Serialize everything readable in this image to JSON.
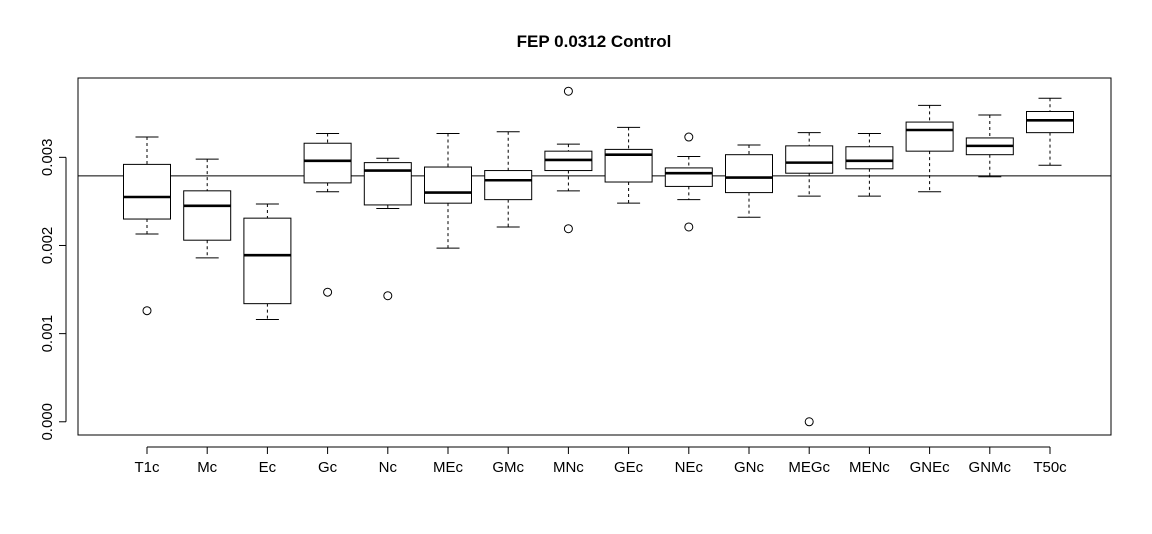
{
  "chart_data": {
    "type": "boxplot",
    "title": "FEP 0.0312 Control",
    "xlabel": "",
    "ylabel": "",
    "ylim": [
      -0.00015,
      0.0039
    ],
    "y_ticks": [
      0.0,
      0.001,
      0.002,
      0.003
    ],
    "y_tick_labels": [
      "0.000",
      "0.001",
      "0.002",
      "0.003"
    ],
    "reference_line_y": 0.00279,
    "categories": [
      "T1c",
      "Mc",
      "Ec",
      "Gc",
      "Nc",
      "MEc",
      "GMc",
      "MNc",
      "GEc",
      "NEc",
      "GNc",
      "MEGc",
      "MENc",
      "GNEc",
      "GNMc",
      "T50c"
    ],
    "boxes": [
      {
        "category": "T1c",
        "whisker_low": 0.00213,
        "q1": 0.0023,
        "median": 0.00255,
        "q3": 0.00292,
        "whisker_high": 0.00323,
        "outliers": [
          0.00126
        ]
      },
      {
        "category": "Mc",
        "whisker_low": 0.00186,
        "q1": 0.00206,
        "median": 0.00245,
        "q3": 0.00262,
        "whisker_high": 0.00298,
        "outliers": []
      },
      {
        "category": "Ec",
        "whisker_low": 0.00116,
        "q1": 0.00134,
        "median": 0.00189,
        "q3": 0.00231,
        "whisker_high": 0.00247,
        "outliers": []
      },
      {
        "category": "Gc",
        "whisker_low": 0.00261,
        "q1": 0.00271,
        "median": 0.00296,
        "q3": 0.00316,
        "whisker_high": 0.00327,
        "outliers": [
          0.00147
        ]
      },
      {
        "category": "Nc",
        "whisker_low": 0.00242,
        "q1": 0.00246,
        "median": 0.00285,
        "q3": 0.00294,
        "whisker_high": 0.00299,
        "outliers": [
          0.00143
        ]
      },
      {
        "category": "MEc",
        "whisker_low": 0.00197,
        "q1": 0.00248,
        "median": 0.0026,
        "q3": 0.00289,
        "whisker_high": 0.00327,
        "outliers": []
      },
      {
        "category": "GMc",
        "whisker_low": 0.00221,
        "q1": 0.00252,
        "median": 0.00274,
        "q3": 0.00285,
        "whisker_high": 0.00329,
        "outliers": []
      },
      {
        "category": "MNc",
        "whisker_low": 0.00262,
        "q1": 0.00285,
        "median": 0.00297,
        "q3": 0.00307,
        "whisker_high": 0.00315,
        "outliers": [
          0.00375,
          0.00219
        ]
      },
      {
        "category": "GEc",
        "whisker_low": 0.00248,
        "q1": 0.00272,
        "median": 0.00303,
        "q3": 0.00309,
        "whisker_high": 0.00334,
        "outliers": []
      },
      {
        "category": "NEc",
        "whisker_low": 0.00252,
        "q1": 0.00267,
        "median": 0.00282,
        "q3": 0.00288,
        "whisker_high": 0.00301,
        "outliers": [
          0.00323,
          0.00221
        ]
      },
      {
        "category": "GNc",
        "whisker_low": 0.00232,
        "q1": 0.0026,
        "median": 0.00277,
        "q3": 0.00303,
        "whisker_high": 0.00314,
        "outliers": []
      },
      {
        "category": "MEGc",
        "whisker_low": 0.00256,
        "q1": 0.00282,
        "median": 0.00294,
        "q3": 0.00313,
        "whisker_high": 0.00328,
        "outliers": [
          0.0
        ]
      },
      {
        "category": "MENc",
        "whisker_low": 0.00256,
        "q1": 0.00287,
        "median": 0.00296,
        "q3": 0.00312,
        "whisker_high": 0.00327,
        "outliers": []
      },
      {
        "category": "GNEc",
        "whisker_low": 0.00261,
        "q1": 0.00307,
        "median": 0.00331,
        "q3": 0.0034,
        "whisker_high": 0.00359,
        "outliers": []
      },
      {
        "category": "GNMc",
        "whisker_low": 0.00278,
        "q1": 0.00303,
        "median": 0.00313,
        "q3": 0.00322,
        "whisker_high": 0.00348,
        "outliers": []
      },
      {
        "category": "T50c",
        "whisker_low": 0.00291,
        "q1": 0.00328,
        "median": 0.00342,
        "q3": 0.00352,
        "whisker_high": 0.00367,
        "outliers": []
      }
    ],
    "grid": false,
    "legend": "none"
  }
}
